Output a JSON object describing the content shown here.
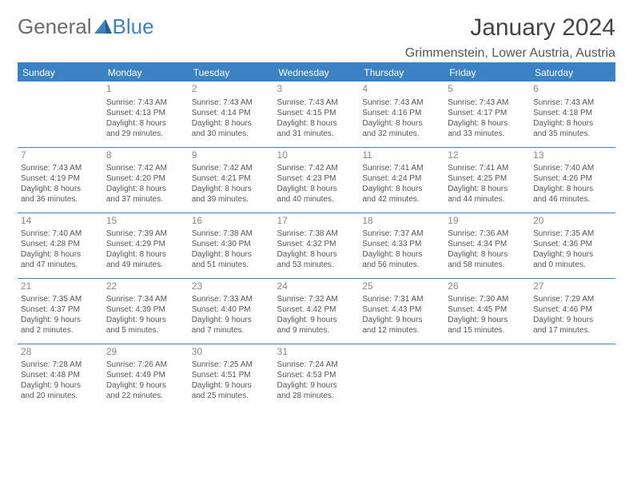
{
  "logo": {
    "text1": "General",
    "text2": "Blue"
  },
  "title": "January 2024",
  "location": "Grimmenstein, Lower Austria, Austria",
  "colors": {
    "accent": "#3b82c4",
    "text": "#555555",
    "daynum": "#888888",
    "header_text": "#ffffff"
  },
  "weekdays": [
    "Sunday",
    "Monday",
    "Tuesday",
    "Wednesday",
    "Thursday",
    "Friday",
    "Saturday"
  ],
  "weeks": [
    [
      null,
      {
        "n": "1",
        "sr": "Sunrise: 7:43 AM",
        "ss": "Sunset: 4:13 PM",
        "d1": "Daylight: 8 hours",
        "d2": "and 29 minutes."
      },
      {
        "n": "2",
        "sr": "Sunrise: 7:43 AM",
        "ss": "Sunset: 4:14 PM",
        "d1": "Daylight: 8 hours",
        "d2": "and 30 minutes."
      },
      {
        "n": "3",
        "sr": "Sunrise: 7:43 AM",
        "ss": "Sunset: 4:15 PM",
        "d1": "Daylight: 8 hours",
        "d2": "and 31 minutes."
      },
      {
        "n": "4",
        "sr": "Sunrise: 7:43 AM",
        "ss": "Sunset: 4:16 PM",
        "d1": "Daylight: 8 hours",
        "d2": "and 32 minutes."
      },
      {
        "n": "5",
        "sr": "Sunrise: 7:43 AM",
        "ss": "Sunset: 4:17 PM",
        "d1": "Daylight: 8 hours",
        "d2": "and 33 minutes."
      },
      {
        "n": "6",
        "sr": "Sunrise: 7:43 AM",
        "ss": "Sunset: 4:18 PM",
        "d1": "Daylight: 8 hours",
        "d2": "and 35 minutes."
      }
    ],
    [
      {
        "n": "7",
        "sr": "Sunrise: 7:43 AM",
        "ss": "Sunset: 4:19 PM",
        "d1": "Daylight: 8 hours",
        "d2": "and 36 minutes."
      },
      {
        "n": "8",
        "sr": "Sunrise: 7:42 AM",
        "ss": "Sunset: 4:20 PM",
        "d1": "Daylight: 8 hours",
        "d2": "and 37 minutes."
      },
      {
        "n": "9",
        "sr": "Sunrise: 7:42 AM",
        "ss": "Sunset: 4:21 PM",
        "d1": "Daylight: 8 hours",
        "d2": "and 39 minutes."
      },
      {
        "n": "10",
        "sr": "Sunrise: 7:42 AM",
        "ss": "Sunset: 4:23 PM",
        "d1": "Daylight: 8 hours",
        "d2": "and 40 minutes."
      },
      {
        "n": "11",
        "sr": "Sunrise: 7:41 AM",
        "ss": "Sunset: 4:24 PM",
        "d1": "Daylight: 8 hours",
        "d2": "and 42 minutes."
      },
      {
        "n": "12",
        "sr": "Sunrise: 7:41 AM",
        "ss": "Sunset: 4:25 PM",
        "d1": "Daylight: 8 hours",
        "d2": "and 44 minutes."
      },
      {
        "n": "13",
        "sr": "Sunrise: 7:40 AM",
        "ss": "Sunset: 4:26 PM",
        "d1": "Daylight: 8 hours",
        "d2": "and 46 minutes."
      }
    ],
    [
      {
        "n": "14",
        "sr": "Sunrise: 7:40 AM",
        "ss": "Sunset: 4:28 PM",
        "d1": "Daylight: 8 hours",
        "d2": "and 47 minutes."
      },
      {
        "n": "15",
        "sr": "Sunrise: 7:39 AM",
        "ss": "Sunset: 4:29 PM",
        "d1": "Daylight: 8 hours",
        "d2": "and 49 minutes."
      },
      {
        "n": "16",
        "sr": "Sunrise: 7:38 AM",
        "ss": "Sunset: 4:30 PM",
        "d1": "Daylight: 8 hours",
        "d2": "and 51 minutes."
      },
      {
        "n": "17",
        "sr": "Sunrise: 7:38 AM",
        "ss": "Sunset: 4:32 PM",
        "d1": "Daylight: 8 hours",
        "d2": "and 53 minutes."
      },
      {
        "n": "18",
        "sr": "Sunrise: 7:37 AM",
        "ss": "Sunset: 4:33 PM",
        "d1": "Daylight: 8 hours",
        "d2": "and 56 minutes."
      },
      {
        "n": "19",
        "sr": "Sunrise: 7:36 AM",
        "ss": "Sunset: 4:34 PM",
        "d1": "Daylight: 8 hours",
        "d2": "and 58 minutes."
      },
      {
        "n": "20",
        "sr": "Sunrise: 7:35 AM",
        "ss": "Sunset: 4:36 PM",
        "d1": "Daylight: 9 hours",
        "d2": "and 0 minutes."
      }
    ],
    [
      {
        "n": "21",
        "sr": "Sunrise: 7:35 AM",
        "ss": "Sunset: 4:37 PM",
        "d1": "Daylight: 9 hours",
        "d2": "and 2 minutes."
      },
      {
        "n": "22",
        "sr": "Sunrise: 7:34 AM",
        "ss": "Sunset: 4:39 PM",
        "d1": "Daylight: 9 hours",
        "d2": "and 5 minutes."
      },
      {
        "n": "23",
        "sr": "Sunrise: 7:33 AM",
        "ss": "Sunset: 4:40 PM",
        "d1": "Daylight: 9 hours",
        "d2": "and 7 minutes."
      },
      {
        "n": "24",
        "sr": "Sunrise: 7:32 AM",
        "ss": "Sunset: 4:42 PM",
        "d1": "Daylight: 9 hours",
        "d2": "and 9 minutes."
      },
      {
        "n": "25",
        "sr": "Sunrise: 7:31 AM",
        "ss": "Sunset: 4:43 PM",
        "d1": "Daylight: 9 hours",
        "d2": "and 12 minutes."
      },
      {
        "n": "26",
        "sr": "Sunrise: 7:30 AM",
        "ss": "Sunset: 4:45 PM",
        "d1": "Daylight: 9 hours",
        "d2": "and 15 minutes."
      },
      {
        "n": "27",
        "sr": "Sunrise: 7:29 AM",
        "ss": "Sunset: 4:46 PM",
        "d1": "Daylight: 9 hours",
        "d2": "and 17 minutes."
      }
    ],
    [
      {
        "n": "28",
        "sr": "Sunrise: 7:28 AM",
        "ss": "Sunset: 4:48 PM",
        "d1": "Daylight: 9 hours",
        "d2": "and 20 minutes."
      },
      {
        "n": "29",
        "sr": "Sunrise: 7:26 AM",
        "ss": "Sunset: 4:49 PM",
        "d1": "Daylight: 9 hours",
        "d2": "and 22 minutes."
      },
      {
        "n": "30",
        "sr": "Sunrise: 7:25 AM",
        "ss": "Sunset: 4:51 PM",
        "d1": "Daylight: 9 hours",
        "d2": "and 25 minutes."
      },
      {
        "n": "31",
        "sr": "Sunrise: 7:24 AM",
        "ss": "Sunset: 4:53 PM",
        "d1": "Daylight: 9 hours",
        "d2": "and 28 minutes."
      },
      null,
      null,
      null
    ]
  ]
}
